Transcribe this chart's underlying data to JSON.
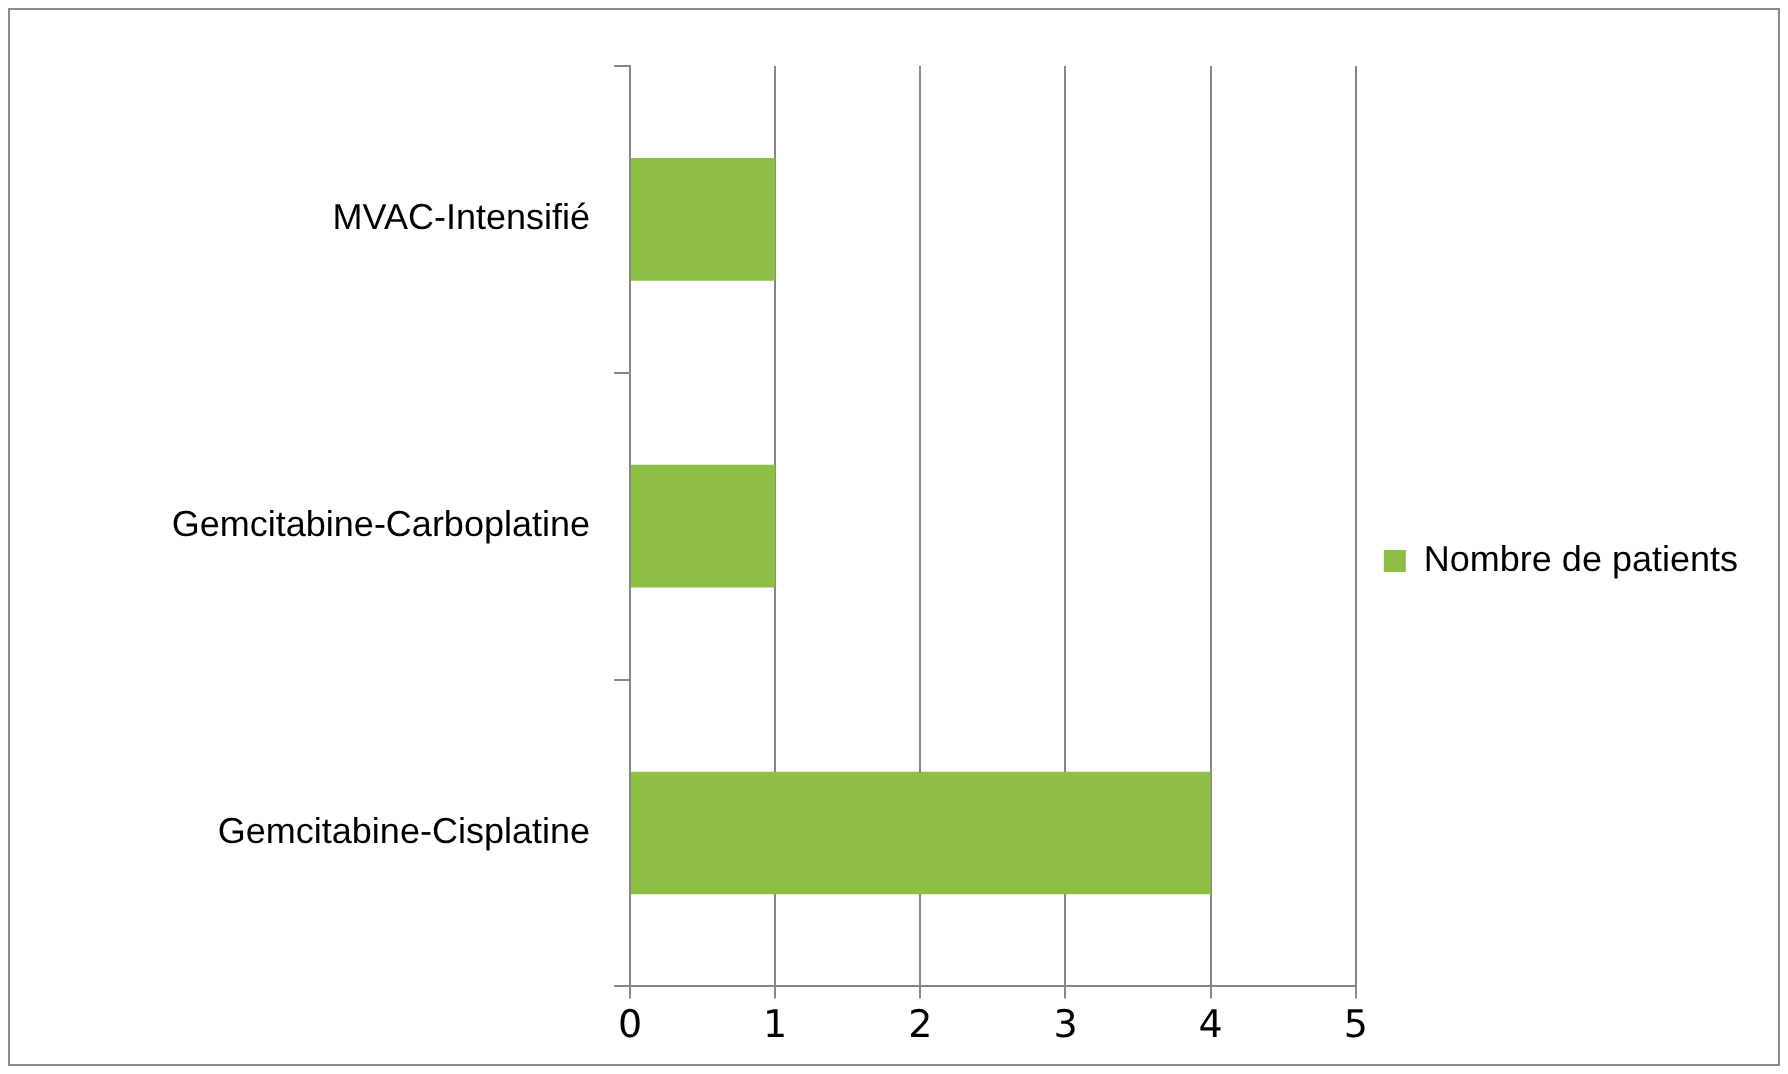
{
  "chart_data": {
    "type": "bar",
    "orientation": "horizontal",
    "categories": [
      "MVAC-Intensifié",
      "Gemcitabine-Carboplatine",
      "Gemcitabine-Cisplatine"
    ],
    "series": [
      {
        "name": "Nombre de patients",
        "color": "#8cbf44",
        "values": [
          1,
          1,
          4
        ]
      }
    ],
    "xlim": [
      0,
      5
    ],
    "xticks": [
      0,
      1,
      2,
      3,
      4,
      5
    ],
    "grid": "x",
    "legend": "right"
  }
}
